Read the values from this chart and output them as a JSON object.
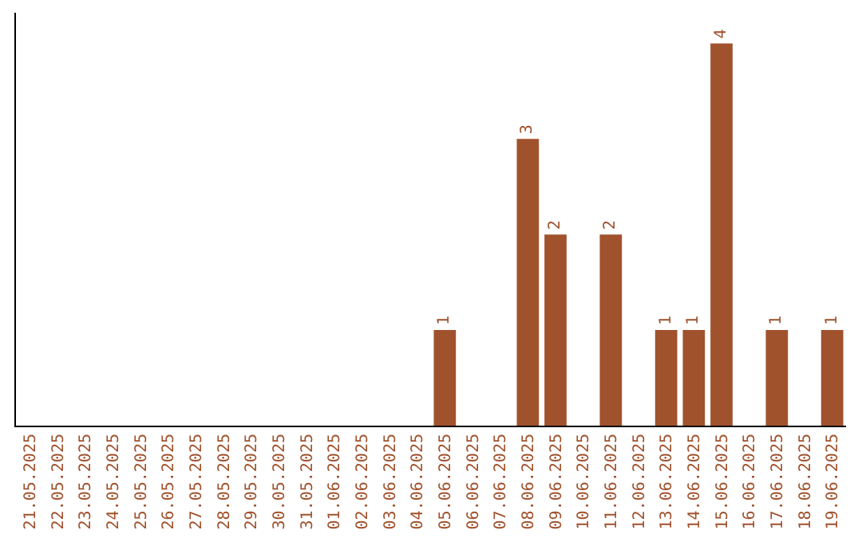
{
  "chart_data": {
    "type": "bar",
    "categories": [
      "21.05.2025",
      "22.05.2025",
      "23.05.2025",
      "24.05.2025",
      "25.05.2025",
      "26.05.2025",
      "27.05.2025",
      "28.05.2025",
      "29.05.2025",
      "30.05.2025",
      "31.05.2025",
      "01.06.2025",
      "02.06.2025",
      "03.06.2025",
      "04.06.2025",
      "05.06.2025",
      "06.06.2025",
      "07.06.2025",
      "08.06.2025",
      "09.06.2025",
      "10.06.2025",
      "11.06.2025",
      "12.06.2025",
      "13.06.2025",
      "14.06.2025",
      "15.06.2025",
      "16.06.2025",
      "17.06.2025",
      "18.06.2025",
      "19.06.2025"
    ],
    "values": [
      null,
      null,
      null,
      null,
      null,
      null,
      null,
      null,
      null,
      null,
      null,
      null,
      null,
      null,
      null,
      1,
      null,
      null,
      3,
      2,
      null,
      2,
      null,
      1,
      1,
      4,
      null,
      1,
      null,
      1
    ],
    "value_labels": [
      null,
      null,
      null,
      null,
      null,
      null,
      null,
      null,
      null,
      null,
      null,
      null,
      null,
      null,
      null,
      "1",
      null,
      null,
      "3",
      "2",
      null,
      "2",
      null,
      "1",
      "1",
      "4",
      null,
      "1",
      null,
      "1"
    ],
    "color": "#a0522d",
    "grid": false,
    "legend": false,
    "tick_labels": "x"
  }
}
